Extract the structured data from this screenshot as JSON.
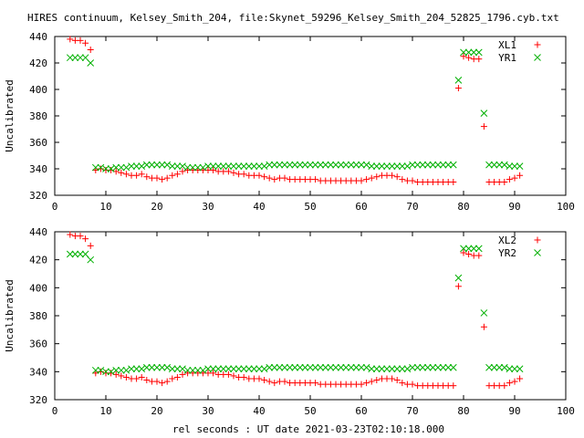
{
  "title": "HIRES continuum, Kelsey_Smith_204, file:Skynet_59296_Kelsey_Smith_204_52825_1796.cyb.txt",
  "xlabel": "rel seconds : UT date 2021-03-23T02:10:18.000",
  "colors": {
    "red": "#ff0000",
    "green": "#00b000",
    "axes": "#000000"
  },
  "chart_data": [
    {
      "type": "scatter",
      "ylabel": "Uncalibrated",
      "xlim": [
        0,
        100
      ],
      "ylim": [
        320,
        440
      ],
      "xticks": [
        0,
        10,
        20,
        30,
        40,
        50,
        60,
        70,
        80,
        90,
        100
      ],
      "yticks": [
        320,
        340,
        360,
        380,
        400,
        420,
        440
      ],
      "legend_position": "top-right",
      "series": [
        {
          "name": "XL1",
          "marker": "plus",
          "color": "#ff0000",
          "x": [
            3,
            4,
            5,
            6,
            7,
            8,
            9,
            10,
            11,
            12,
            13,
            14,
            15,
            16,
            17,
            18,
            19,
            20,
            21,
            22,
            23,
            24,
            25,
            26,
            27,
            28,
            29,
            30,
            31,
            32,
            33,
            34,
            35,
            36,
            37,
            38,
            39,
            40,
            41,
            42,
            43,
            44,
            45,
            46,
            47,
            48,
            49,
            50,
            51,
            52,
            53,
            54,
            55,
            56,
            57,
            58,
            59,
            60,
            61,
            62,
            63,
            64,
            65,
            66,
            67,
            68,
            69,
            70,
            71,
            72,
            73,
            74,
            75,
            76,
            77,
            78,
            79,
            80,
            81,
            82,
            83,
            84,
            85,
            86,
            87,
            88,
            89,
            90,
            91
          ],
          "y": [
            438,
            437,
            437,
            435,
            430,
            339,
            340,
            339,
            339,
            338,
            337,
            336,
            335,
            335,
            336,
            334,
            333,
            333,
            332,
            333,
            335,
            336,
            338,
            339,
            339,
            339,
            339,
            339,
            339,
            338,
            338,
            338,
            337,
            336,
            336,
            335,
            335,
            335,
            334,
            333,
            332,
            333,
            333,
            332,
            332,
            332,
            332,
            332,
            332,
            331,
            331,
            331,
            331,
            331,
            331,
            331,
            331,
            331,
            332,
            333,
            334,
            335,
            335,
            335,
            334,
            332,
            331,
            331,
            330,
            330,
            330,
            330,
            330,
            330,
            330,
            330,
            401,
            425,
            424,
            423,
            423,
            372,
            330,
            330,
            330,
            330,
            332,
            333,
            335
          ]
        },
        {
          "name": "YR1",
          "marker": "cross",
          "color": "#00b000",
          "x": [
            3,
            4,
            5,
            6,
            7,
            8,
            9,
            10,
            11,
            12,
            13,
            14,
            15,
            16,
            17,
            18,
            19,
            20,
            21,
            22,
            23,
            24,
            25,
            26,
            27,
            28,
            29,
            30,
            31,
            32,
            33,
            34,
            35,
            36,
            37,
            38,
            39,
            40,
            41,
            42,
            43,
            44,
            45,
            46,
            47,
            48,
            49,
            50,
            51,
            52,
            53,
            54,
            55,
            56,
            57,
            58,
            59,
            60,
            61,
            62,
            63,
            64,
            65,
            66,
            67,
            68,
            69,
            70,
            71,
            72,
            73,
            74,
            75,
            76,
            77,
            78,
            79,
            80,
            81,
            82,
            83,
            84,
            85,
            86,
            87,
            88,
            89,
            90,
            91
          ],
          "y": [
            424,
            424,
            424,
            424,
            420,
            341,
            341,
            340,
            340,
            341,
            341,
            341,
            342,
            342,
            342,
            343,
            343,
            343,
            343,
            343,
            342,
            342,
            342,
            341,
            341,
            341,
            341,
            342,
            342,
            342,
            342,
            342,
            342,
            342,
            342,
            342,
            342,
            342,
            342,
            343,
            343,
            343,
            343,
            343,
            343,
            343,
            343,
            343,
            343,
            343,
            343,
            343,
            343,
            343,
            343,
            343,
            343,
            343,
            343,
            342,
            342,
            342,
            342,
            342,
            342,
            342,
            342,
            343,
            343,
            343,
            343,
            343,
            343,
            343,
            343,
            343,
            407,
            428,
            428,
            428,
            428,
            382,
            343,
            343,
            343,
            343,
            342,
            342,
            342
          ]
        }
      ]
    },
    {
      "type": "scatter",
      "ylabel": "Uncalibrated",
      "xlim": [
        0,
        100
      ],
      "ylim": [
        320,
        440
      ],
      "xticks": [
        0,
        10,
        20,
        30,
        40,
        50,
        60,
        70,
        80,
        90,
        100
      ],
      "yticks": [
        320,
        340,
        360,
        380,
        400,
        420,
        440
      ],
      "legend_position": "top-right",
      "series": [
        {
          "name": "XL2",
          "marker": "plus",
          "color": "#ff0000",
          "x": [
            3,
            4,
            5,
            6,
            7,
            8,
            9,
            10,
            11,
            12,
            13,
            14,
            15,
            16,
            17,
            18,
            19,
            20,
            21,
            22,
            23,
            24,
            25,
            26,
            27,
            28,
            29,
            30,
            31,
            32,
            33,
            34,
            35,
            36,
            37,
            38,
            39,
            40,
            41,
            42,
            43,
            44,
            45,
            46,
            47,
            48,
            49,
            50,
            51,
            52,
            53,
            54,
            55,
            56,
            57,
            58,
            59,
            60,
            61,
            62,
            63,
            64,
            65,
            66,
            67,
            68,
            69,
            70,
            71,
            72,
            73,
            74,
            75,
            76,
            77,
            78,
            79,
            80,
            81,
            82,
            83,
            84,
            85,
            86,
            87,
            88,
            89,
            90,
            91
          ],
          "y": [
            438,
            437,
            437,
            435,
            430,
            339,
            340,
            339,
            339,
            338,
            337,
            336,
            335,
            335,
            336,
            334,
            333,
            333,
            332,
            333,
            335,
            336,
            338,
            339,
            339,
            339,
            339,
            339,
            339,
            338,
            338,
            338,
            337,
            336,
            336,
            335,
            335,
            335,
            334,
            333,
            332,
            333,
            333,
            332,
            332,
            332,
            332,
            332,
            332,
            331,
            331,
            331,
            331,
            331,
            331,
            331,
            331,
            331,
            332,
            333,
            334,
            335,
            335,
            335,
            334,
            332,
            331,
            331,
            330,
            330,
            330,
            330,
            330,
            330,
            330,
            330,
            401,
            425,
            424,
            423,
            423,
            372,
            330,
            330,
            330,
            330,
            332,
            333,
            335
          ]
        },
        {
          "name": "YR2",
          "marker": "cross",
          "color": "#00b000",
          "x": [
            3,
            4,
            5,
            6,
            7,
            8,
            9,
            10,
            11,
            12,
            13,
            14,
            15,
            16,
            17,
            18,
            19,
            20,
            21,
            22,
            23,
            24,
            25,
            26,
            27,
            28,
            29,
            30,
            31,
            32,
            33,
            34,
            35,
            36,
            37,
            38,
            39,
            40,
            41,
            42,
            43,
            44,
            45,
            46,
            47,
            48,
            49,
            50,
            51,
            52,
            53,
            54,
            55,
            56,
            57,
            58,
            59,
            60,
            61,
            62,
            63,
            64,
            65,
            66,
            67,
            68,
            69,
            70,
            71,
            72,
            73,
            74,
            75,
            76,
            77,
            78,
            79,
            80,
            81,
            82,
            83,
            84,
            85,
            86,
            87,
            88,
            89,
            90,
            91
          ],
          "y": [
            424,
            424,
            424,
            424,
            420,
            341,
            341,
            340,
            340,
            341,
            341,
            341,
            342,
            342,
            342,
            343,
            343,
            343,
            343,
            343,
            342,
            342,
            342,
            341,
            341,
            341,
            341,
            342,
            342,
            342,
            342,
            342,
            342,
            342,
            342,
            342,
            342,
            342,
            342,
            343,
            343,
            343,
            343,
            343,
            343,
            343,
            343,
            343,
            343,
            343,
            343,
            343,
            343,
            343,
            343,
            343,
            343,
            343,
            343,
            342,
            342,
            342,
            342,
            342,
            342,
            342,
            342,
            343,
            343,
            343,
            343,
            343,
            343,
            343,
            343,
            343,
            407,
            428,
            428,
            428,
            428,
            382,
            343,
            343,
            343,
            343,
            342,
            342,
            342
          ]
        }
      ]
    }
  ]
}
